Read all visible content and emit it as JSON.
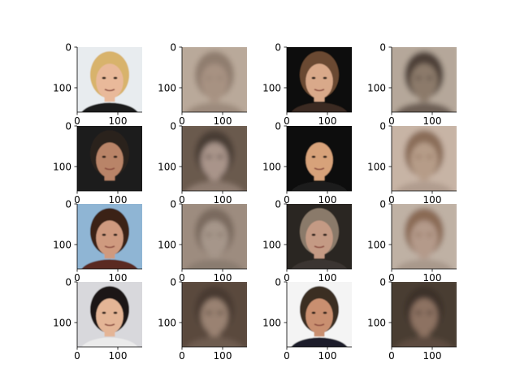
{
  "chart_data": {
    "type": "image_grid",
    "rows": 4,
    "cols": 4,
    "x_axis": {
      "range": [
        0,
        160
      ],
      "ticks": [
        0,
        100
      ]
    },
    "y_axis": {
      "range": [
        0,
        160
      ],
      "ticks": [
        0,
        100
      ]
    },
    "panels": [
      {
        "kind": "original-photo",
        "colors": {
          "bg": "#e8ecef",
          "skin": "#e9b99a",
          "hair": "#d8b36c",
          "cloth": "#1a1a1a"
        }
      },
      {
        "kind": "reconstruction",
        "colors": {
          "bg": "#b9a99a",
          "skin": "#a79282",
          "hair": "#8f7d6e",
          "cloth": "#9c8a7c"
        }
      },
      {
        "kind": "original-photo",
        "colors": {
          "bg": "#0b0b0b",
          "skin": "#d9a98a",
          "hair": "#6b4a33",
          "cloth": "#3a2a22"
        }
      },
      {
        "kind": "reconstruction",
        "colors": {
          "bg": "#b5a79a",
          "skin": "#8c7a6b",
          "hair": "#4d4038",
          "cloth": "#6d5f55"
        }
      },
      {
        "kind": "original-photo",
        "colors": {
          "bg": "#1c1d1f",
          "skin": "#b98467",
          "hair": "#2a221e",
          "cloth": "#1e1e1e"
        }
      },
      {
        "kind": "reconstruction",
        "colors": {
          "bg": "#6b5a4e",
          "skin": "#a9948a",
          "hair": "#4a3d35",
          "cloth": "#8e7c70"
        }
      },
      {
        "kind": "original-photo",
        "colors": {
          "bg": "#0d0c0c",
          "skin": "#d7a27a",
          "hair": "#111111",
          "cloth": "#1a1a1a"
        }
      },
      {
        "kind": "reconstruction",
        "colors": {
          "bg": "#c7b4a5",
          "skin": "#b69c88",
          "hair": "#8a6d59",
          "cloth": "#b09c8e"
        }
      },
      {
        "kind": "original-photo",
        "colors": {
          "bg": "#8fb5d4",
          "skin": "#cf9a7f",
          "hair": "#3a2418",
          "cloth": "#5a2a20"
        }
      },
      {
        "kind": "reconstruction",
        "colors": {
          "bg": "#9d8c7f",
          "skin": "#a6968a",
          "hair": "#7a6a5e",
          "cloth": "#8a7b70"
        }
      },
      {
        "kind": "original-photo",
        "colors": {
          "bg": "#2a2520",
          "skin": "#c49a84",
          "hair": "#8a7a6a",
          "cloth": "#3b3530"
        }
      },
      {
        "kind": "reconstruction",
        "colors": {
          "bg": "#bfb1a4",
          "skin": "#b49a8a",
          "hair": "#8a6a55",
          "cloth": "#a8988b"
        }
      },
      {
        "kind": "original-photo",
        "colors": {
          "bg": "#d8d8dc",
          "skin": "#e4b596",
          "hair": "#1a1512",
          "cloth": "#ebebeb"
        }
      },
      {
        "kind": "reconstruction",
        "colors": {
          "bg": "#5a4a3e",
          "skin": "#9a8272",
          "hair": "#4a3a30",
          "cloth": "#6e5c50"
        }
      },
      {
        "kind": "original-photo",
        "colors": {
          "bg": "#f4f4f4",
          "skin": "#c98f6f",
          "hair": "#3a2d24",
          "cloth": "#1a1f2a"
        }
      },
      {
        "kind": "reconstruction",
        "colors": {
          "bg": "#4a3c33",
          "skin": "#8d7262",
          "hair": "#3d3129",
          "cloth": "#5d4b40"
        }
      }
    ]
  }
}
